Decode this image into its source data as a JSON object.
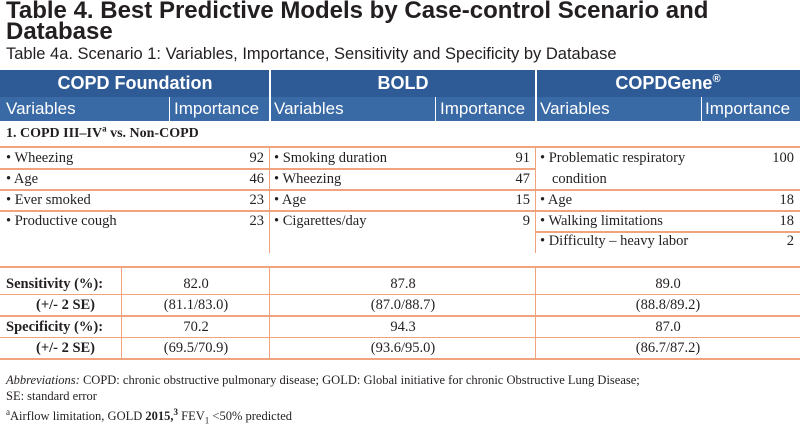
{
  "title": "Table 4. Best Predictive Models by Case-control Scenario and Database",
  "subtitle": "Table 4a. Scenario 1: Variables, Importance, Sensitivity and Specificity by Database",
  "databases": [
    {
      "name": "COPD Foundation",
      "sup": ""
    },
    {
      "name": "BOLD",
      "sup": ""
    },
    {
      "name": "COPDGene",
      "sup": "®"
    }
  ],
  "col_variables": "Variables",
  "col_importance": "Importance",
  "scenario_label": "1. COPD III–IV",
  "scenario_sup": "a",
  "scenario_tail": " vs. Non-COPD",
  "rows": [
    {
      "c1v": "• Wheezing",
      "c1i": "92",
      "c2v": "• Smoking duration",
      "c2i": "91",
      "c3v": "• Problematic respiratory",
      "c3v2": "condition",
      "c3i": "100"
    },
    {
      "c1v": "• Age",
      "c1i": "46",
      "c2v": "• Wheezing",
      "c2i": "47"
    },
    {
      "c1v": "• Ever smoked",
      "c1i": "23",
      "c2v": "• Age",
      "c2i": "15",
      "c3v": "• Age",
      "c3i": "18"
    },
    {
      "c1v": "• Productive cough",
      "c1i": "23",
      "c2v": "• Cigarettes/day",
      "c2i": "9",
      "c3v": "• Walking limitations",
      "c3i": "18"
    },
    {
      "c3v": "• Difficulty – heavy labor",
      "c3i": "2"
    }
  ],
  "metrics": [
    {
      "label": "Sensitivity (%):",
      "v1": "82.0",
      "v2": "87.8",
      "v3": "89.0"
    },
    {
      "label": "(+/-  2 SE)",
      "v1": "(81.1/83.0)",
      "v2": "(87.0/88.7)",
      "v3": "(88.8/89.2)"
    },
    {
      "label": "Specificity (%):",
      "v1": "70.2",
      "v2": "94.3",
      "v3": "87.0"
    },
    {
      "label": "(+/-  2 SE)",
      "v1": "(69.5/70.9)",
      "v2": "(93.6/95.0)",
      "v3": "(86.7/87.2)"
    }
  ],
  "footnote": {
    "abbr_label": "Abbreviations:",
    "abbr_text": " COPD: chronic obstructive pulmonary disease; GOLD: Global initiative for chronic Obstructive Lung Disease;",
    "abbr_text2": "SE: standard error",
    "a_mark": "a",
    "a_text": "Airflow limitation, GOLD ",
    "a_year": "2015,",
    "a_ref": "3",
    "a_fev": " FEV",
    "a_fev_sub": "1",
    "a_tail": " <50% predicted"
  }
}
